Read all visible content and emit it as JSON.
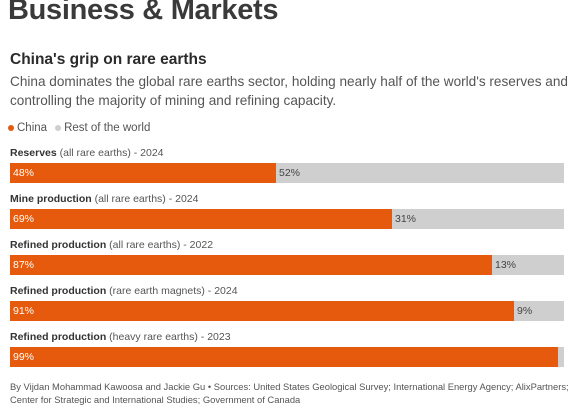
{
  "masthead": "Business & Markets",
  "title": "China's grip on rare earths",
  "subtitle": "China dominates the global rare earths sector, holding nearly half of the world's reserves and controlling the majority of mining and refining capacity.",
  "legend": {
    "china": "China",
    "rest": "Rest of the world"
  },
  "colors": {
    "china": "#e55a0c",
    "rest": "#cfcfcf"
  },
  "chart_data": {
    "type": "bar",
    "orientation": "horizontal",
    "stacked": true,
    "title": "China's grip on rare earths",
    "xlim": [
      0,
      100
    ],
    "rows": [
      {
        "label": "Reserves",
        "detail": "(all rare earths) - 2024",
        "china": 48,
        "china_label": "48%",
        "rest": 52,
        "rest_label": "52%"
      },
      {
        "label": "Mine production",
        "detail": "(all rare earths) - 2024",
        "china": 69,
        "china_label": "69%",
        "rest": 31,
        "rest_label": "31%"
      },
      {
        "label": "Refined production",
        "detail": "(all rare earths) - 2022",
        "china": 87,
        "china_label": "87%",
        "rest": 13,
        "rest_label": "13%"
      },
      {
        "label": "Refined production",
        "detail": "(rare earth magnets) - 2024",
        "china": 91,
        "china_label": "91%",
        "rest": 9,
        "rest_label": "9%"
      },
      {
        "label": "Refined production",
        "detail": "(heavy rare earths) - 2023",
        "china": 99,
        "china_label": "99%",
        "rest": 1,
        "rest_label": ""
      }
    ],
    "series": [
      {
        "name": "China"
      },
      {
        "name": "Rest of the world"
      }
    ],
    "legend_position": "top-left"
  },
  "footer": "By Vijdan Mohammad Kawoosa and Jackie Gu • Sources: United States Geological Survey; International Energy Agency; AlixPartners; Center for Strategic and International Studies; Government of Canada"
}
